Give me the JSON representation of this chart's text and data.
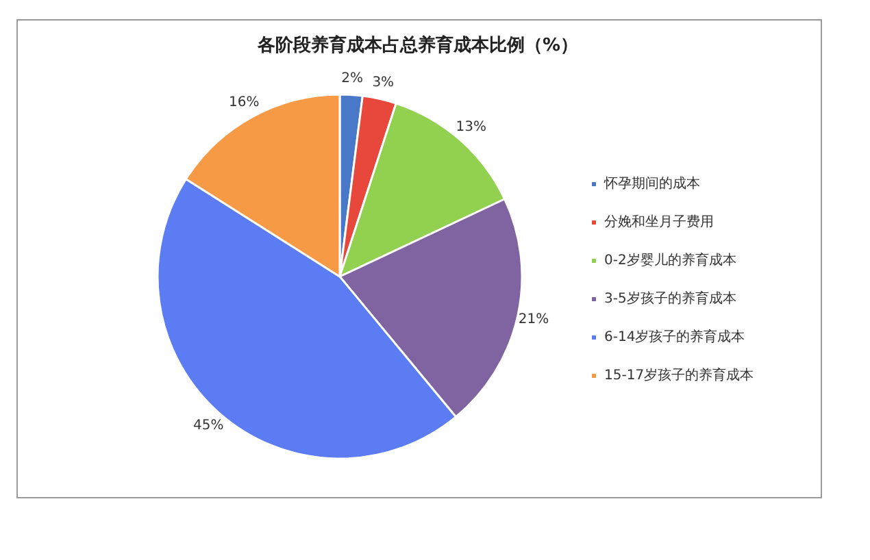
{
  "chart_data": {
    "type": "pie",
    "title": "各阶段养育成本占总养育成本比例（%）",
    "categories": [
      "怀孕期间的成本",
      "分娩和坐月子费用",
      "0-2岁婴儿的养育成本",
      "3-5岁孩子的养育成本",
      "6-14岁孩子的养育成本",
      "15-17岁孩子的养育成本"
    ],
    "values": [
      2,
      3,
      13,
      21,
      45,
      16
    ],
    "colors": [
      "#4a78c8",
      "#e8483c",
      "#92d050",
      "#8064a2",
      "#5b7cf2",
      "#f79a46"
    ],
    "value_labels": [
      "2%",
      "3%",
      "13%",
      "21%",
      "45%",
      "16%"
    ],
    "legend": "right"
  }
}
